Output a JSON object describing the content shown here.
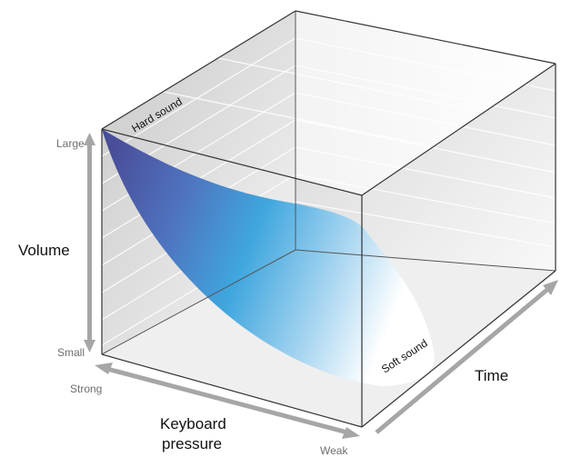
{
  "diagram": {
    "volume_axis": {
      "title": "Volume",
      "max_label": "Large",
      "min_label": "Small"
    },
    "pressure_axis": {
      "title_line1": "Keyboard",
      "title_line2": "pressure",
      "start_label": "Strong",
      "end_label": "Weak"
    },
    "time_axis": {
      "title": "Time"
    },
    "curve_labels": {
      "hard": "Hard sound",
      "soft": "Soft sound"
    },
    "colors": {
      "surface_dark": "#4a4e9a",
      "surface_mid": "#3fa6de",
      "surface_light": "#ffffff",
      "arrow_gray": "#a6a6a6",
      "edge": "#333333"
    }
  }
}
